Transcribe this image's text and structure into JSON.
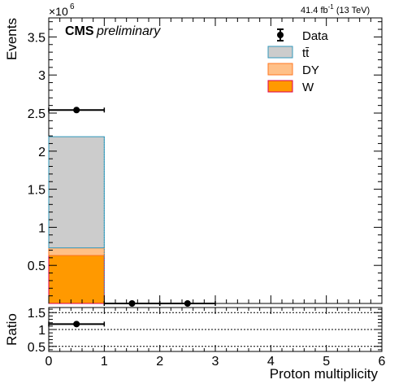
{
  "header": {
    "experiment": "CMS",
    "status": "preliminary",
    "lumi_text": "41.4 fb",
    "lumi_sup": "-1",
    "lumi_energy": " (13 TeV)",
    "exponent_base": "×10",
    "exponent_power": "6"
  },
  "chart_data": [
    {
      "type": "bar",
      "stacked": true,
      "xlabel": "Proton multiplicity",
      "ylabel": "Events",
      "xlim": [
        0,
        6
      ],
      "ylim": [
        0,
        3.75
      ],
      "y_multiplier": "×10^6",
      "x_ticks": [
        0,
        1,
        2,
        3,
        4,
        5,
        6
      ],
      "y_ticks": [
        0.5,
        1,
        1.5,
        2,
        2.5,
        3,
        3.5
      ],
      "bin_edges": [
        0,
        1,
        2,
        3,
        4,
        5,
        6
      ],
      "series": [
        {
          "name": "W",
          "values": [
            0.63,
            0.0,
            0.0,
            0.0,
            0.0,
            0.0
          ],
          "color": "#ff9900",
          "edge": "#dd0055"
        },
        {
          "name": "DY",
          "values": [
            0.1,
            0.0,
            0.0,
            0.0,
            0.0,
            0.0
          ],
          "color": "#ffc088",
          "edge": "#ff7722"
        },
        {
          "name": "tt̄",
          "values": [
            1.46,
            0.0,
            0.0,
            0.0,
            0.0,
            0.0
          ],
          "color": "#cccccc",
          "edge": "#3399bb"
        }
      ],
      "data_points": {
        "name": "Data",
        "x": [
          0.5,
          1.5,
          2.5
        ],
        "y": [
          2.54,
          0.0,
          0.0
        ],
        "xerr": [
          0.5,
          0.5,
          0.5
        ]
      },
      "legend": [
        "Data",
        "tt̄",
        "DY",
        "W"
      ],
      "legend_position": "top-right"
    },
    {
      "type": "scatter",
      "xlabel": "Proton multiplicity",
      "ylabel": "Ratio",
      "xlim": [
        0,
        6
      ],
      "ylim": [
        0.35,
        1.65
      ],
      "y_ticks": [
        0.5,
        1,
        1.5
      ],
      "x": [
        0.5
      ],
      "y": [
        1.16
      ],
      "xerr": [
        0.5
      ],
      "reference_lines": [
        0.5,
        1,
        1.5
      ]
    }
  ]
}
